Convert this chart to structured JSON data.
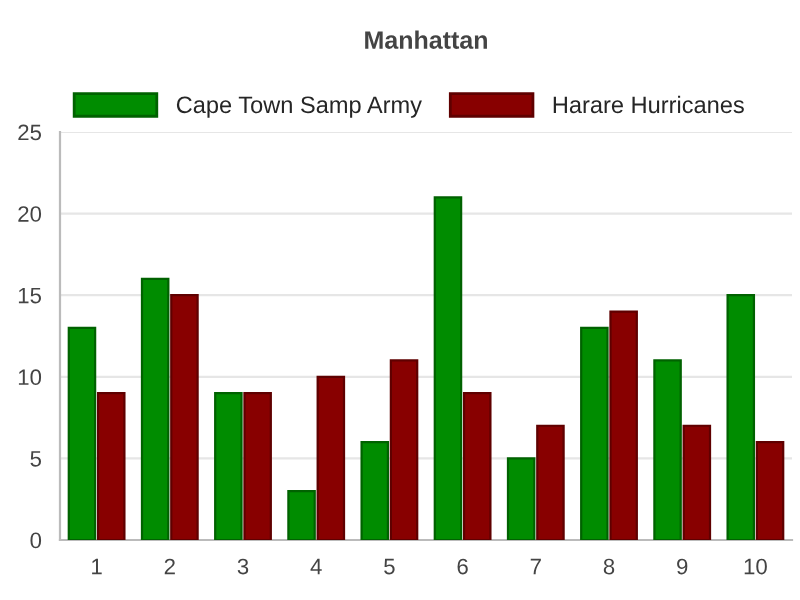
{
  "chart_data": {
    "type": "bar",
    "title": "Manhattan",
    "categories": [
      "1",
      "2",
      "3",
      "4",
      "5",
      "6",
      "7",
      "8",
      "9",
      "10"
    ],
    "series": [
      {
        "name": "Cape Town Samp Army",
        "color": "#008c00",
        "values": [
          13,
          16,
          9,
          3,
          6,
          21,
          5,
          13,
          11,
          15
        ]
      },
      {
        "name": "Harare Hurricanes",
        "color": "#880000",
        "values": [
          9,
          15,
          9,
          10,
          11,
          9,
          7,
          14,
          7,
          6
        ]
      }
    ],
    "ylim": [
      0,
      25
    ],
    "yticks": [
      0,
      5,
      10,
      15,
      20,
      25
    ],
    "grid": "y",
    "legend": "top left"
  }
}
